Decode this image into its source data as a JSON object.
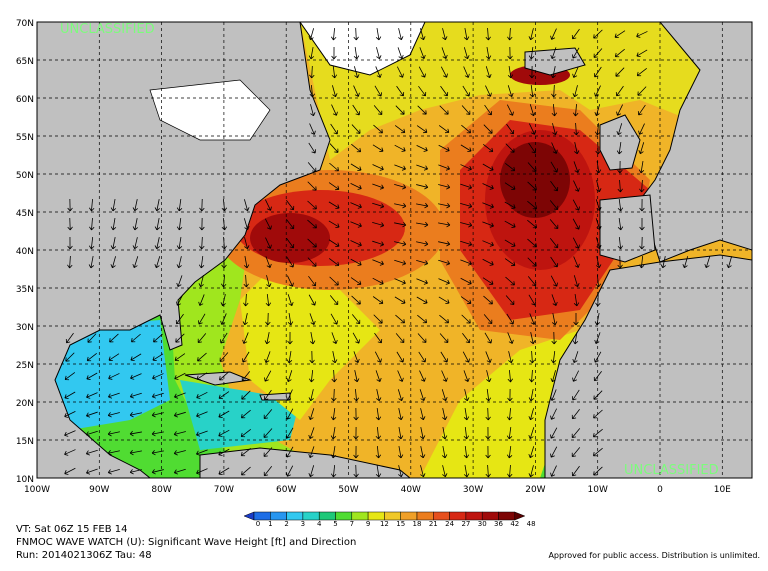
{
  "map": {
    "watermarks": [
      "UNCLASSIFIED",
      "UNCLASSIFIED"
    ],
    "lat_labels": [
      "70N",
      "65N",
      "60N",
      "55N",
      "50N",
      "45N",
      "40N",
      "35N",
      "30N",
      "25N",
      "20N",
      "15N",
      "10N"
    ],
    "lon_labels": [
      "100W",
      "90W",
      "80W",
      "70W",
      "60W",
      "50W",
      "40W",
      "30W",
      "20W",
      "10W",
      "0",
      "10E"
    ]
  },
  "colorbar": {
    "levels": [
      0,
      1,
      2,
      3,
      4,
      5,
      7,
      9,
      12,
      15,
      18,
      21,
      24,
      27,
      30,
      36,
      42,
      48
    ],
    "colors": [
      "#1a3cc8",
      "#1e6ee6",
      "#2896f0",
      "#32c8f0",
      "#28d2c8",
      "#1ec878",
      "#50dc32",
      "#a0e61e",
      "#e6e614",
      "#f0c828",
      "#f0a028",
      "#eb7d1e",
      "#e6501e",
      "#d72814",
      "#be140f",
      "#a00a0a",
      "#7d0505",
      "#5a0000"
    ]
  },
  "caption": {
    "valid_time": "VT: Sat 06Z 15 FEB 14",
    "product": "FNMOC WAVE WATCH (U): Significant Wave Height [ft] and Direction",
    "run": "Run: 2014021306Z Tau: 48",
    "release": "Approved for public access. Distribution is unlimited."
  }
}
